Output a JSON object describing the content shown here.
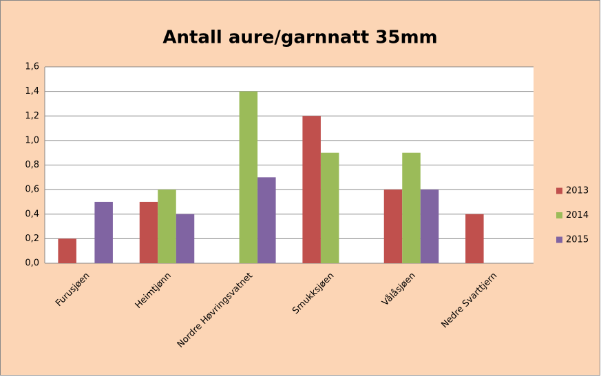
{
  "chart_data": {
    "type": "bar",
    "title": "Antall aure/garnnatt 35mm",
    "categories": [
      "Furusjøen",
      "Heimtjønn",
      "Nordre Høvringsvatnet",
      "Smukksjøen",
      "Vålåsjøen",
      "Nedre Svarttjern"
    ],
    "series": [
      {
        "name": "2013",
        "color": "#c0504d",
        "values": [
          0.2,
          0.5,
          null,
          1.2,
          0.6,
          0.4
        ]
      },
      {
        "name": "2014",
        "color": "#9bbb59",
        "values": [
          null,
          0.6,
          1.4,
          0.9,
          0.9,
          null
        ]
      },
      {
        "name": "2015",
        "color": "#8064a2",
        "values": [
          0.5,
          0.4,
          0.7,
          null,
          0.6,
          null
        ]
      }
    ],
    "ylim": [
      0,
      1.6
    ],
    "yticks": [
      {
        "value": 0,
        "label": "0,0"
      },
      {
        "value": 0.2,
        "label": "0,2"
      },
      {
        "value": 0.4,
        "label": "0,4"
      },
      {
        "value": 0.6,
        "label": "0,6"
      },
      {
        "value": 0.8,
        "label": "0,8"
      },
      {
        "value": 1.0,
        "label": "1,0"
      },
      {
        "value": 1.2,
        "label": "1,2"
      },
      {
        "value": 1.4,
        "label": "1,4"
      },
      {
        "value": 1.6,
        "label": "1,6"
      }
    ],
    "grid": true,
    "legend": "right"
  }
}
